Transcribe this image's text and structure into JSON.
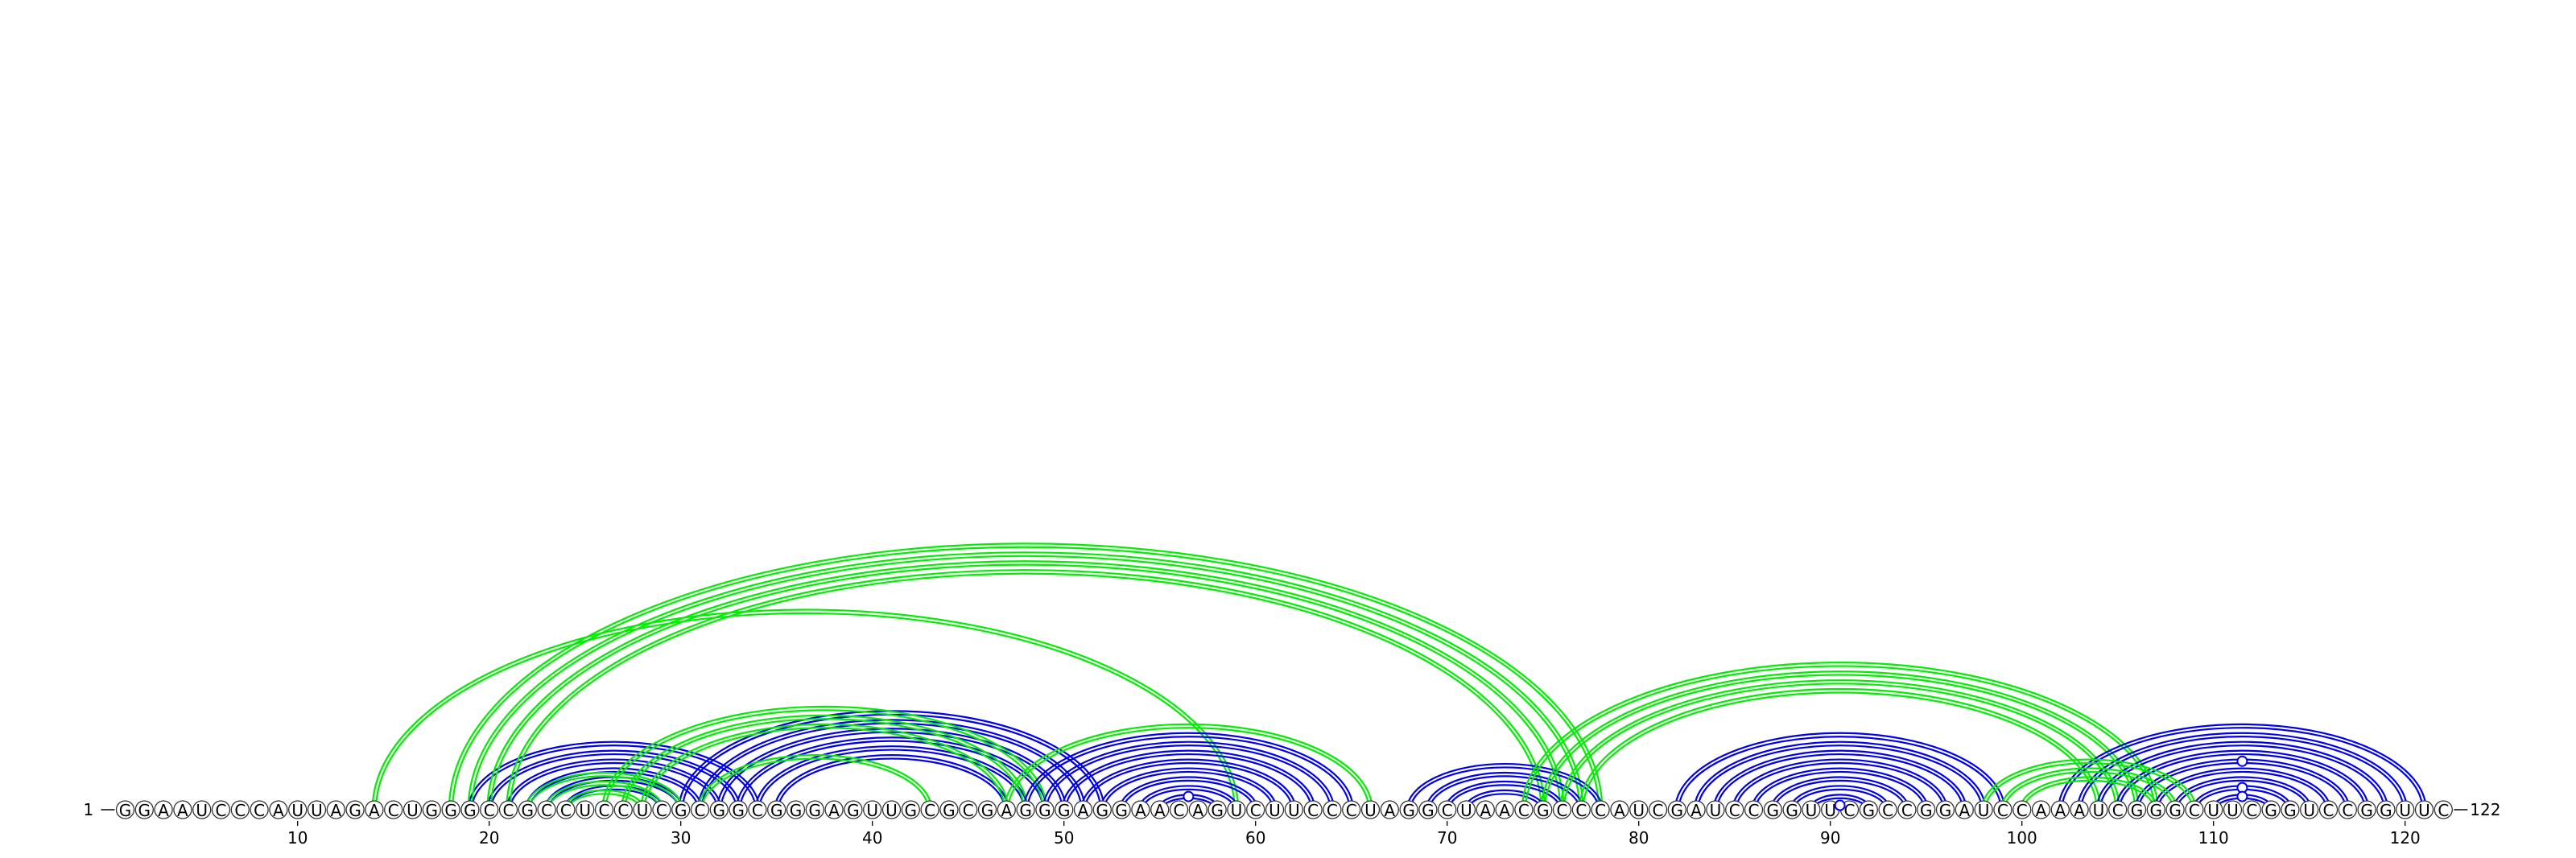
{
  "sequence": "GGAAUCCCAUUAGACUGGGCCGCCUCCUCGCGGCGGGAGUUGCGCGAGGGAGGAACAGUCUUCCCUAGGCUAACGCCCAUCGAUCCGGUUCGCCGGAUCCAAAUCGGGCUUCGGUCCGGUUC",
  "start_label": "1",
  "end_label": "122",
  "tick_values": [
    "10",
    "20",
    "30",
    "40",
    "50",
    "60",
    "70",
    "80",
    "90",
    "100",
    "110",
    "120"
  ],
  "colors": {
    "blue": "#0000ee",
    "green": "#00ee00"
  },
  "helices": [
    {
      "color": "blue",
      "pairs": [
        [
          19,
          34
        ],
        [
          20,
          33
        ],
        [
          21,
          32
        ],
        [
          22,
          31
        ],
        [
          23,
          30
        ],
        [
          24,
          29
        ]
      ]
    },
    {
      "color": "blue",
      "pairs": [
        [
          30,
          52
        ],
        [
          31,
          51
        ],
        [
          32,
          50
        ],
        [
          33,
          49
        ],
        [
          34,
          48
        ],
        [
          35,
          47
        ]
      ]
    },
    {
      "color": "green",
      "pairs": [
        [
          22,
          30
        ],
        [
          23,
          29
        ],
        [
          24,
          28
        ]
      ]
    },
    {
      "color": "green",
      "pairs": [
        [
          26,
          49
        ],
        [
          27,
          48
        ],
        [
          28,
          47
        ]
      ]
    },
    {
      "color": "green",
      "pairs": [
        [
          31,
          43
        ]
      ]
    },
    {
      "color": "green",
      "pairs": [
        [
          14,
          59
        ]
      ]
    },
    {
      "color": "green",
      "pairs": [
        [
          18,
          78
        ],
        [
          19,
          77
        ],
        [
          20,
          76
        ],
        [
          21,
          75
        ]
      ]
    },
    {
      "color": "green",
      "pairs": [
        [
          47,
          66
        ]
      ]
    },
    {
      "color": "blue",
      "pairs": [
        [
          48,
          65
        ],
        [
          49,
          64
        ],
        [
          50,
          63
        ],
        [
          51,
          62
        ],
        [
          52,
          61
        ],
        [
          53,
          60
        ],
        [
          54,
          59
        ],
        [
          55,
          58
        ]
      ],
      "gu": [
        [
          55,
          58
        ]
      ]
    },
    {
      "color": "blue",
      "pairs": [
        [
          68,
          78
        ],
        [
          69,
          77
        ],
        [
          70,
          76
        ],
        [
          71,
          75
        ]
      ]
    },
    {
      "color": "green",
      "pairs": [
        [
          74,
          107
        ],
        [
          75,
          106
        ],
        [
          76,
          105
        ],
        [
          77,
          104
        ]
      ]
    },
    {
      "color": "blue",
      "pairs": [
        [
          82,
          99
        ],
        [
          83,
          98
        ],
        [
          84,
          97
        ],
        [
          85,
          96
        ],
        [
          86,
          95
        ],
        [
          87,
          94
        ],
        [
          88,
          93
        ],
        [
          89,
          92
        ],
        [
          90,
          91
        ]
      ],
      "gu": [
        [
          90,
          91
        ]
      ]
    },
    {
      "color": "blue",
      "pairs": [
        [
          102,
          121
        ],
        [
          103,
          120
        ],
        [
          104,
          119
        ],
        [
          105,
          118
        ],
        [
          106,
          117
        ],
        [
          107,
          116
        ],
        [
          108,
          115
        ],
        [
          109,
          114
        ],
        [
          110,
          113
        ]
      ],
      "gu": [
        [
          106,
          117
        ],
        [
          109,
          114
        ],
        [
          110,
          113
        ]
      ]
    },
    {
      "color": "green",
      "pairs": [
        [
          98,
          109
        ],
        [
          99,
          108
        ],
        [
          100,
          107
        ]
      ]
    }
  ]
}
